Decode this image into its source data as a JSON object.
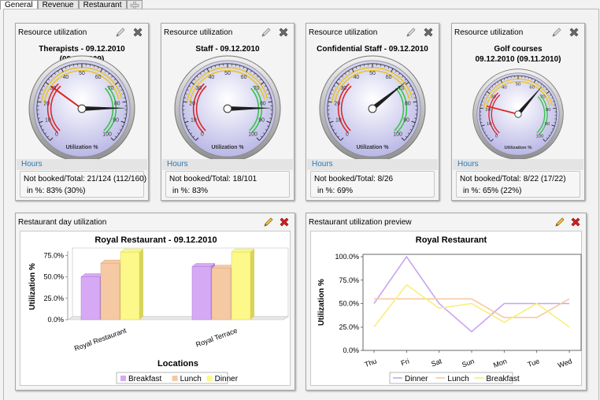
{
  "tabs": [
    {
      "label": "General"
    },
    {
      "label": "Revenue"
    },
    {
      "label": "Restaurant"
    }
  ],
  "gauges": [
    {
      "title": "Resource utilization",
      "subtitle": "Therapists - 09.12.2010 (09.12.2009)",
      "subtitle2": "",
      "value": 83,
      "compare": 30,
      "hours_label": "Hours",
      "info1": "Not booked/Total: 21/124 (112/160)",
      "info2": "in %: 83% (30%)"
    },
    {
      "title": "Resource utilization",
      "subtitle": "Staff - 09.12.2010",
      "subtitle2": "",
      "value": 83,
      "compare": null,
      "hours_label": "Hours",
      "info1": "Not booked/Total: 18/101",
      "info2": "in %: 83%"
    },
    {
      "title": "Resource utilization",
      "subtitle": "Confidential Staff - 09.12.2010",
      "subtitle2": "",
      "value": 69,
      "compare": null,
      "hours_label": "Hours",
      "info1": "Not booked/Total: 8/26",
      "info2": "in %: 69%"
    },
    {
      "title": "Resource utilization",
      "subtitle": "Golf courses",
      "subtitle2": "09.12.2010 (09.11.2010)",
      "value": 65,
      "compare": 22,
      "hours_label": "Hours",
      "info1": "Not booked/Total: 8/22 (17/22)",
      "info2": "in %: 65% (22%)"
    }
  ],
  "gauge_scale": {
    "ticks": [
      "0",
      "10",
      "20",
      "30",
      "40",
      "50",
      "60",
      "70",
      "80",
      "90",
      "100"
    ],
    "label": "Utilization %"
  },
  "colors": {
    "red": "#d8262a",
    "yellow": "#e8c42a",
    "green": "#37c24a",
    "breakfast": "#d6a9f5",
    "lunch": "#f5c9a3",
    "dinner": "#fcf88a"
  },
  "bar_portlet": {
    "title": "Restaurant day utilization"
  },
  "line_portlet": {
    "title": "Restaurant utilization preview"
  },
  "chart_data": [
    {
      "type": "bar",
      "title": "Royal Restaurant - 09.12.2010",
      "xlabel": "Locations",
      "ylabel": "Utilization %",
      "ylim": [
        0,
        80
      ],
      "yticks": [
        "0.0%",
        "25.0%",
        "50.0%",
        "75.0%"
      ],
      "categories": [
        "Royal Restaurant",
        "Royal Terrace"
      ],
      "series": [
        {
          "name": "Breakfast",
          "values": [
            50,
            62
          ]
        },
        {
          "name": "Lunch",
          "values": [
            66,
            60
          ]
        },
        {
          "name": "Dinner",
          "values": [
            79,
            79
          ]
        }
      ],
      "legend": "bottom"
    },
    {
      "type": "line",
      "title": "Royal Restaurant",
      "ylabel": "Utilization %",
      "ylim": [
        0,
        100
      ],
      "yticks": [
        "0.0%",
        "25.0%",
        "50.0%",
        "75.0%",
        "100.0%"
      ],
      "categories": [
        "Thu",
        "Fri",
        "Sat",
        "Sun",
        "Mon",
        "Tue",
        "Wed"
      ],
      "series": [
        {
          "name": "Dinner",
          "color": "#c9a4ef",
          "values": [
            50,
            100,
            50,
            20,
            50,
            50,
            50
          ]
        },
        {
          "name": "Lunch",
          "color": "#f5c9a3",
          "values": [
            55,
            55,
            55,
            55,
            35,
            35,
            55
          ]
        },
        {
          "name": "Breakfast",
          "color": "#f7ef7c",
          "values": [
            25,
            70,
            45,
            50,
            30,
            50,
            25
          ]
        }
      ],
      "legend": "bottom"
    }
  ]
}
